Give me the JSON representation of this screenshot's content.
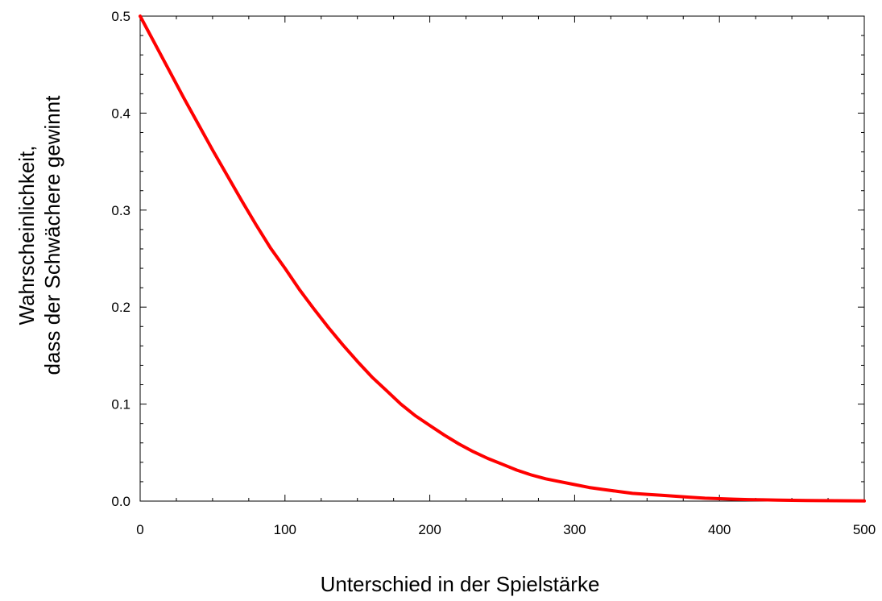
{
  "chart_data": {
    "type": "line",
    "xlabel": "Unterschied in der Spielstärke",
    "ylabel_lines": [
      "Wahrscheinlichkeit,",
      "dass der Schwächere gewinnt"
    ],
    "xlim": [
      0,
      500
    ],
    "ylim": [
      0,
      0.5
    ],
    "x_ticks": [
      "0",
      "100",
      "200",
      "300",
      "400",
      "500"
    ],
    "y_ticks": [
      "0.0",
      "0.1",
      "0.2",
      "0.3",
      "0.4",
      "0.5"
    ],
    "grid": false,
    "series": [
      {
        "color": "#ff0000",
        "x": [
          0,
          10,
          20,
          30,
          40,
          50,
          60,
          70,
          80,
          90,
          100,
          110,
          120,
          130,
          140,
          150,
          160,
          170,
          180,
          190,
          200,
          210,
          220,
          230,
          240,
          250,
          260,
          270,
          280,
          290,
          300,
          310,
          320,
          330,
          340,
          350,
          360,
          370,
          380,
          390,
          400,
          410,
          420,
          430,
          440,
          450,
          460,
          470,
          480,
          490,
          500
        ],
        "y": [
          0.5,
          0.472,
          0.444,
          0.416,
          0.389,
          0.362,
          0.336,
          0.31,
          0.285,
          0.261,
          0.24,
          0.218,
          0.198,
          0.179,
          0.161,
          0.144,
          0.128,
          0.114,
          0.1,
          0.088,
          0.078,
          0.068,
          0.059,
          0.051,
          0.044,
          0.038,
          0.032,
          0.027,
          0.023,
          0.02,
          0.017,
          0.014,
          0.012,
          0.01,
          0.008,
          0.007,
          0.006,
          0.005,
          0.004,
          0.003,
          0.0025,
          0.002,
          0.0016,
          0.0013,
          0.001,
          0.0008,
          0.0006,
          0.0005,
          0.0004,
          0.0003,
          0.0002
        ]
      }
    ]
  }
}
